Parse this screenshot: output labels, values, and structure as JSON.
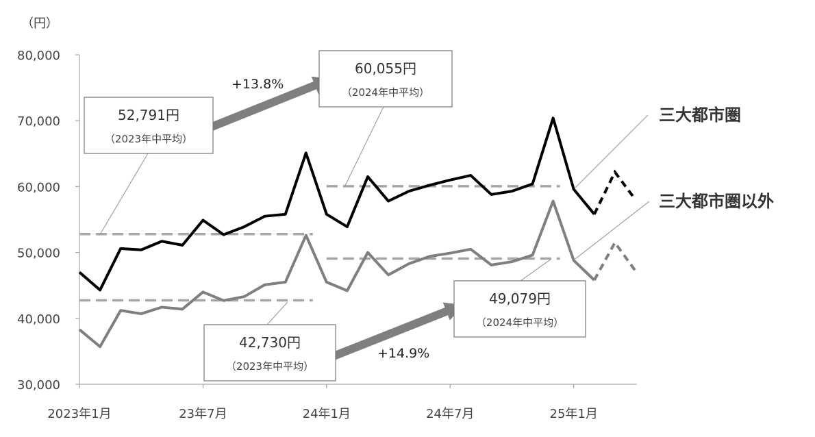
{
  "chart_data": {
    "type": "line",
    "yunit": "（円）",
    "ylim": [
      30000,
      80000
    ],
    "yticks": [
      30000,
      40000,
      50000,
      60000,
      70000,
      80000
    ],
    "ytick_labels": [
      "30,000",
      "40,000",
      "50,000",
      "60,000",
      "70,000",
      "80,000"
    ],
    "x": [
      "2023-01",
      "2023-02",
      "2023-03",
      "2023-04",
      "2023-05",
      "2023-06",
      "2023-07",
      "2023-08",
      "2023-09",
      "2023-10",
      "2023-11",
      "2023-12",
      "2024-01",
      "2024-02",
      "2024-03",
      "2024-04",
      "2024-05",
      "2024-06",
      "2024-07",
      "2024-08",
      "2024-09",
      "2024-10",
      "2024-11",
      "2024-12",
      "2025-01",
      "2025-02",
      "2025-03",
      "2025-04"
    ],
    "xtick_labels": [
      {
        "x": "2023-01",
        "label": "2023年1月"
      },
      {
        "x": "2023-07",
        "label": "23年7月"
      },
      {
        "x": "2024-01",
        "label": "24年1月"
      },
      {
        "x": "2024-07",
        "label": "24年7月"
      },
      {
        "x": "2025-01",
        "label": "25年1月"
      }
    ],
    "grid": false,
    "series": [
      {
        "name": "三大都市圏",
        "color": "#000000",
        "values": [
          47000,
          44300,
          50600,
          50400,
          51700,
          51100,
          54900,
          52700,
          53900,
          55500,
          55800,
          65100,
          55800,
          53900,
          61500,
          57800,
          59300,
          60200,
          61000,
          61700,
          58800,
          59300,
          60400,
          70400,
          59600,
          55800,
          62200,
          58000
        ],
        "dashed_from": "2025-03"
      },
      {
        "name": "三大都市圏以外",
        "color": "#7f7f7f",
        "values": [
          38300,
          35700,
          41200,
          40700,
          41700,
          41400,
          44000,
          42700,
          43300,
          45100,
          45500,
          52600,
          45500,
          44200,
          50000,
          46600,
          48300,
          49400,
          49900,
          50500,
          48100,
          48600,
          49600,
          57800,
          48800,
          45800,
          51500,
          47200
        ],
        "dashed_from": "2025-03"
      }
    ],
    "averages": [
      {
        "series": "三大都市圏",
        "from": "2023-01",
        "to": "2023-12",
        "value": 52791,
        "value_label": "52,791円",
        "note": "（2023年中平均）"
      },
      {
        "series": "三大都市圏",
        "from": "2024-01",
        "to": "2024-12",
        "value": 60055,
        "value_label": "60,055円",
        "note": "（2024年中平均）"
      },
      {
        "series": "三大都市圏以外",
        "from": "2023-01",
        "to": "2023-12",
        "value": 42730,
        "value_label": "42,730円",
        "note": "（2023年中平均）"
      },
      {
        "series": "三大都市圏以外",
        "from": "2024-01",
        "to": "2024-12",
        "value": 49079,
        "value_label": "49,079円",
        "note": "（2024年中平均）"
      }
    ],
    "changes": [
      {
        "series": "三大都市圏",
        "label": "+13.8%"
      },
      {
        "series": "三大都市圏以外",
        "label": "+14.9%"
      }
    ],
    "average_line_color": "#a6a6a6",
    "arrow_color": "#7f7f7f",
    "axis_color": "#a6a6a6"
  }
}
